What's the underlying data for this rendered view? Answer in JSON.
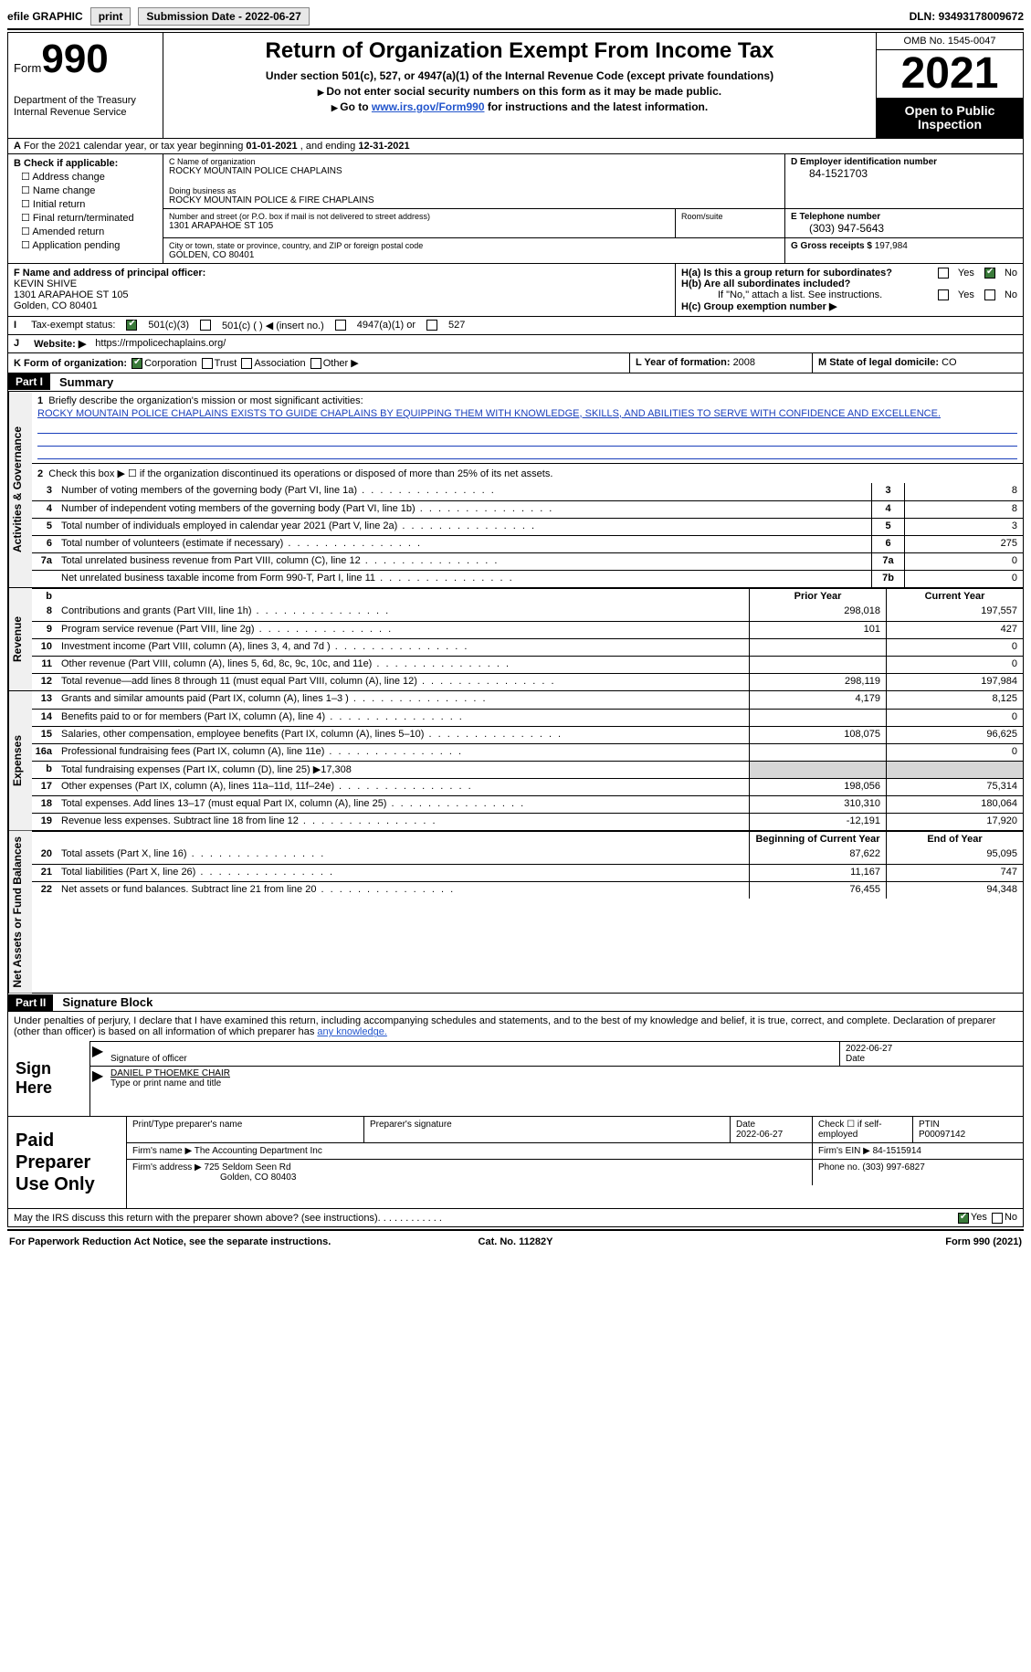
{
  "topbar": {
    "efile": "efile GRAPHIC",
    "print": "print",
    "subdate_label": "Submission Date - ",
    "subdate": "2022-06-27",
    "dln_label": "DLN: ",
    "dln": "93493178009672"
  },
  "header": {
    "form_word": "Form",
    "form_num": "990",
    "dept": "Department of the Treasury\nInternal Revenue Service",
    "title": "Return of Organization Exempt From Income Tax",
    "sub1": "Under section 501(c), 527, or 4947(a)(1) of the Internal Revenue Code (except private foundations)",
    "sub2": "Do not enter social security numbers on this form as it may be made public.",
    "sub3_a": "Go to ",
    "sub3_link": "www.irs.gov/Form990",
    "sub3_b": " for instructions and the latest information.",
    "omb": "OMB No. 1545-0047",
    "year": "2021",
    "open": "Open to Public Inspection"
  },
  "rowA": {
    "label": "A",
    "text_a": " For the 2021 calendar year, or tax year beginning ",
    "begin": "01-01-2021",
    "text_b": " , and ending ",
    "end": "12-31-2021"
  },
  "colB": {
    "label": "B Check if applicable:",
    "opts": [
      "Address change",
      "Name change",
      "Initial return",
      "Final return/terminated",
      "Amended return",
      "Application pending"
    ]
  },
  "boxC": {
    "name_lbl": "C Name of organization",
    "name": "ROCKY MOUNTAIN POLICE CHAPLAINS",
    "dba_lbl": "Doing business as",
    "dba": "ROCKY MOUNTAIN POLICE & FIRE CHAPLAINS",
    "street_lbl": "Number and street (or P.O. box if mail is not delivered to street address)",
    "street": "1301 ARAPAHOE ST 105",
    "room_lbl": "Room/suite",
    "city_lbl": "City or town, state or province, country, and ZIP or foreign postal code",
    "city": "GOLDEN, CO  80401"
  },
  "boxD": {
    "lbl": "D Employer identification number",
    "val": "84-1521703"
  },
  "boxE": {
    "lbl": "E Telephone number",
    "val": "(303) 947-5643"
  },
  "boxG": {
    "lbl": "G Gross receipts $ ",
    "val": "197,984"
  },
  "boxF": {
    "lbl": "F Name and address of principal officer:",
    "name": "KEVIN SHIVE",
    "addr1": "1301 ARAPAHOE ST 105",
    "addr2": "Golden, CO  80401"
  },
  "boxH": {
    "a_lbl": "H(a)  Is this a group return for subordinates?",
    "b_lbl": "H(b)  Are all subordinates included?",
    "b_note": "If \"No,\" attach a list. See instructions.",
    "c_lbl": "H(c)  Group exemption number ▶",
    "yes": "Yes",
    "no": "No"
  },
  "rowI": {
    "lbl": "I",
    "text": "Tax-exempt status:",
    "o1": "501(c)(3)",
    "o2": "501(c) (  ) ◀ (insert no.)",
    "o3": "4947(a)(1) or",
    "o4": "527"
  },
  "rowJ": {
    "lbl": "J",
    "text": "Website: ▶",
    "val": "https://rmpolicechaplains.org/"
  },
  "rowK": {
    "lbl": "K Form of organization:",
    "o1": "Corporation",
    "o2": "Trust",
    "o3": "Association",
    "o4": "Other ▶"
  },
  "rowL": {
    "lbl": "L Year of formation: ",
    "val": "2008"
  },
  "rowM": {
    "lbl": "M State of legal domicile: ",
    "val": "CO"
  },
  "part1": {
    "tab": "Part I",
    "title": "Summary"
  },
  "summary": {
    "l1_lbl": "1",
    "l1_text": "Briefly describe the organization's mission or most significant activities:",
    "l1_val": "ROCKY MOUNTAIN POLICE CHAPLAINS EXISTS TO GUIDE CHAPLAINS BY EQUIPPING THEM WITH KNOWLEDGE, SKILLS, AND ABILITIES TO SERVE WITH CONFIDENCE AND EXCELLENCE.",
    "l2_lbl": "2",
    "l2_text": "Check this box ▶ ☐ if the organization discontinued its operations or disposed of more than 25% of its net assets."
  },
  "gov_lines": [
    {
      "n": "3",
      "t": "Number of voting members of the governing body (Part VI, line 1a)",
      "box": "3",
      "v": "8"
    },
    {
      "n": "4",
      "t": "Number of independent voting members of the governing body (Part VI, line 1b)",
      "box": "4",
      "v": "8"
    },
    {
      "n": "5",
      "t": "Total number of individuals employed in calendar year 2021 (Part V, line 2a)",
      "box": "5",
      "v": "3"
    },
    {
      "n": "6",
      "t": "Total number of volunteers (estimate if necessary)",
      "box": "6",
      "v": "275"
    },
    {
      "n": "7a",
      "t": "Total unrelated business revenue from Part VIII, column (C), line 12",
      "box": "7a",
      "v": "0"
    },
    {
      "n": "",
      "t": "Net unrelated business taxable income from Form 990-T, Part I, line 11",
      "box": "7b",
      "v": "0"
    }
  ],
  "vtabs": {
    "gov": "Activities & Governance",
    "rev": "Revenue",
    "exp": "Expenses",
    "net": "Net Assets or Fund Balances"
  },
  "col_hdrs": {
    "b": "b",
    "prior": "Prior Year",
    "current": "Current Year"
  },
  "rev_lines": [
    {
      "n": "8",
      "t": "Contributions and grants (Part VIII, line 1h)",
      "p": "298,018",
      "c": "197,557"
    },
    {
      "n": "9",
      "t": "Program service revenue (Part VIII, line 2g)",
      "p": "101",
      "c": "427"
    },
    {
      "n": "10",
      "t": "Investment income (Part VIII, column (A), lines 3, 4, and 7d )",
      "p": "",
      "c": "0"
    },
    {
      "n": "11",
      "t": "Other revenue (Part VIII, column (A), lines 5, 6d, 8c, 9c, 10c, and 11e)",
      "p": "",
      "c": "0"
    },
    {
      "n": "12",
      "t": "Total revenue—add lines 8 through 11 (must equal Part VIII, column (A), line 12)",
      "p": "298,119",
      "c": "197,984"
    }
  ],
  "exp_lines": [
    {
      "n": "13",
      "t": "Grants and similar amounts paid (Part IX, column (A), lines 1–3 )",
      "p": "4,179",
      "c": "8,125"
    },
    {
      "n": "14",
      "t": "Benefits paid to or for members (Part IX, column (A), line 4)",
      "p": "",
      "c": "0"
    },
    {
      "n": "15",
      "t": "Salaries, other compensation, employee benefits (Part IX, column (A), lines 5–10)",
      "p": "108,075",
      "c": "96,625"
    },
    {
      "n": "16a",
      "t": "Professional fundraising fees (Part IX, column (A), line 11e)",
      "p": "",
      "c": "0"
    },
    {
      "n": "b",
      "t": "Total fundraising expenses (Part IX, column (D), line 25) ▶17,308",
      "p": "SHADE",
      "c": "SHADE"
    },
    {
      "n": "17",
      "t": "Other expenses (Part IX, column (A), lines 11a–11d, 11f–24e)",
      "p": "198,056",
      "c": "75,314"
    },
    {
      "n": "18",
      "t": "Total expenses. Add lines 13–17 (must equal Part IX, column (A), line 25)",
      "p": "310,310",
      "c": "180,064"
    },
    {
      "n": "19",
      "t": "Revenue less expenses. Subtract line 18 from line 12",
      "p": "-12,191",
      "c": "17,920"
    }
  ],
  "net_hdrs": {
    "begin": "Beginning of Current Year",
    "end": "End of Year"
  },
  "net_lines": [
    {
      "n": "20",
      "t": "Total assets (Part X, line 16)",
      "p": "87,622",
      "c": "95,095"
    },
    {
      "n": "21",
      "t": "Total liabilities (Part X, line 26)",
      "p": "11,167",
      "c": "747"
    },
    {
      "n": "22",
      "t": "Net assets or fund balances. Subtract line 21 from line 20",
      "p": "76,455",
      "c": "94,348"
    }
  ],
  "part2": {
    "tab": "Part II",
    "title": "Signature Block"
  },
  "sig": {
    "decl": "Under penalties of perjury, I declare that I have examined this return, including accompanying schedules and statements, and to the best of my knowledge and belief, it is true, correct, and complete. Declaration of preparer (other than officer) is based on all information of which preparer has ",
    "decl_link": "any knowledge.",
    "sign_here": "Sign Here",
    "sig_officer": "Signature of officer",
    "sig_date": "2022-06-27",
    "date_lbl": "Date",
    "name": "DANIEL P THOEMKE CHAIR",
    "name_lbl": "Type or print name and title"
  },
  "prep": {
    "title": "Paid Preparer Use Only",
    "h1": "Print/Type preparer's name",
    "h2": "Preparer's signature",
    "h3_lbl": "Date",
    "h3": "2022-06-27",
    "h4": "Check ☐ if self-employed",
    "h5_lbl": "PTIN",
    "h5": "P00097142",
    "firm_lbl": "Firm's name   ▶ ",
    "firm": "The Accounting Department Inc",
    "ein_lbl": "Firm's EIN ▶ ",
    "ein": "84-1515914",
    "addr_lbl": "Firm's address ▶ ",
    "addr": "725 Seldom Seen Rd",
    "addr2": "Golden, CO  80403",
    "phone_lbl": "Phone no. ",
    "phone": "(303) 997-6827"
  },
  "footer": {
    "q": "May the IRS discuss this return with the preparer shown above? (see instructions)",
    "yes": "Yes",
    "no": "No",
    "pra": "For Paperwork Reduction Act Notice, see the separate instructions.",
    "cat": "Cat. No. 11282Y",
    "form": "Form 990 (2021)"
  }
}
